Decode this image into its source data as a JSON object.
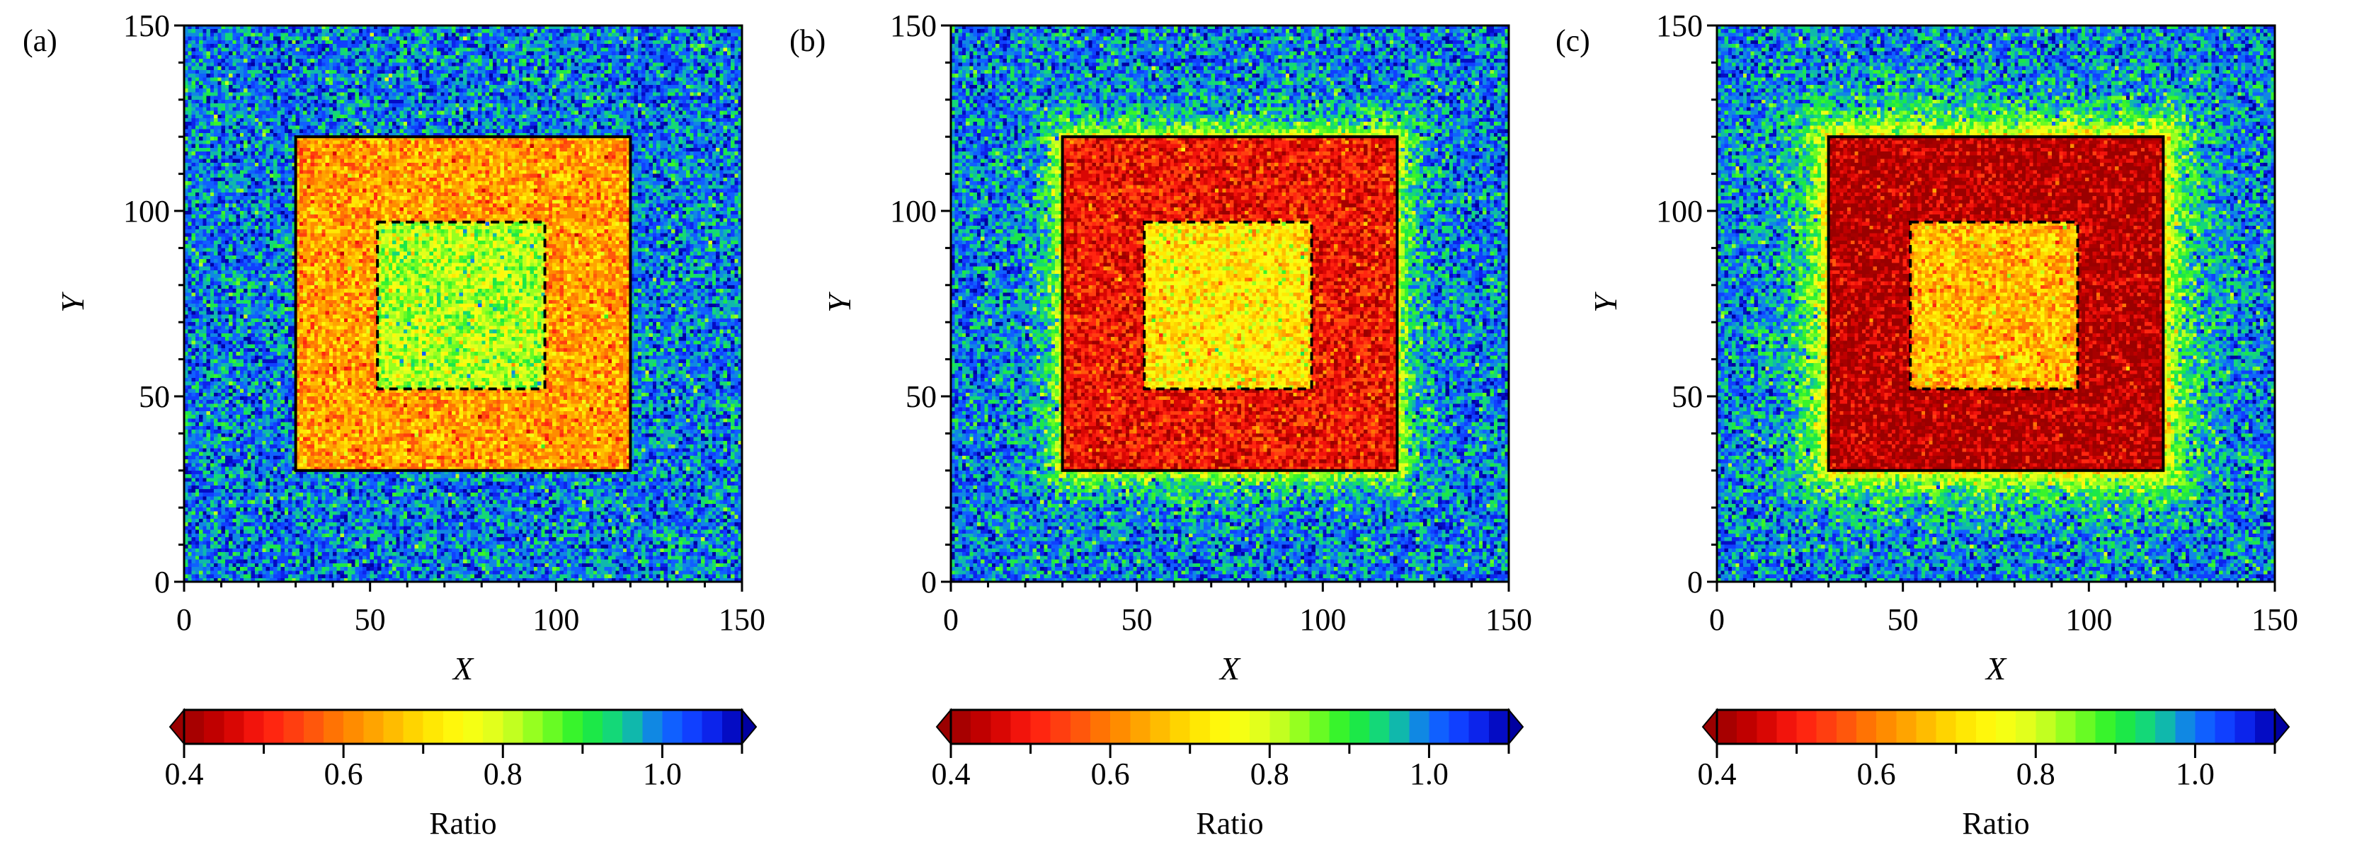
{
  "chart_data": {
    "type": "heatmap",
    "grid": {
      "nx": 150,
      "ny": 150
    },
    "colorbar": {
      "label": "Ratio",
      "range": [
        0.4,
        1.1
      ],
      "ticks": [
        0.4,
        0.5,
        0.6,
        0.7,
        0.8,
        0.9,
        1.0,
        1.1
      ],
      "tick_labels": [
        "0.4",
        "",
        "0.6",
        "",
        "0.8",
        "",
        "1.0",
        ""
      ],
      "extend": "both",
      "levels": 28,
      "colormap": [
        [
          0.4,
          "#9a0000"
        ],
        [
          0.45,
          "#cc0000"
        ],
        [
          0.5,
          "#ff1a10"
        ],
        [
          0.55,
          "#ff4a10"
        ],
        [
          0.6,
          "#ff8000"
        ],
        [
          0.65,
          "#ffb000"
        ],
        [
          0.7,
          "#ffe000"
        ],
        [
          0.75,
          "#ffff10"
        ],
        [
          0.8,
          "#d8ff20"
        ],
        [
          0.85,
          "#80ff20"
        ],
        [
          0.9,
          "#20f030"
        ],
        [
          0.95,
          "#10d090"
        ],
        [
          1.0,
          "#1070ff"
        ],
        [
          1.05,
          "#1030ff"
        ],
        [
          1.1,
          "#0000b0"
        ]
      ],
      "under_color": "#9a0000",
      "over_color": "#0000a0"
    },
    "panels": [
      {
        "label": "(a)",
        "xlabel": "X",
        "ylabel": "Y",
        "xlim": [
          0,
          150
        ],
        "ylim": [
          0,
          150
        ],
        "xticks": [
          "0",
          "50",
          "100",
          "150"
        ],
        "yticks": [
          "0",
          "50",
          "100",
          "150"
        ],
        "outer_square": [
          30,
          120
        ],
        "inner_dashed_square": [
          52,
          97
        ],
        "mean_background": 1.0,
        "mean_frame": 0.63,
        "mean_inner": 0.82,
        "halo_amplitude": 0.0,
        "halo_width": 3,
        "noise": 0.06
      },
      {
        "label": "(b)",
        "xlabel": "X",
        "ylabel": "Y",
        "xlim": [
          0,
          150
        ],
        "ylim": [
          0,
          150
        ],
        "xticks": [
          "0",
          "50",
          "100",
          "150"
        ],
        "yticks": [
          "0",
          "50",
          "100",
          "150"
        ],
        "outer_square": [
          30,
          120
        ],
        "inner_dashed_square": [
          52,
          97
        ],
        "mean_background": 1.0,
        "mean_frame": 0.49,
        "mean_inner": 0.72,
        "halo_amplitude": 0.22,
        "halo_width": 4,
        "noise": 0.06
      },
      {
        "label": "(c)",
        "xlabel": "X",
        "ylabel": "Y",
        "xlim": [
          0,
          150
        ],
        "ylim": [
          0,
          150
        ],
        "xticks": [
          "0",
          "50",
          "100",
          "150"
        ],
        "yticks": [
          "0",
          "50",
          "100",
          "150"
        ],
        "outer_square": [
          30,
          120
        ],
        "inner_dashed_square": [
          52,
          97
        ],
        "mean_background": 1.0,
        "mean_frame": 0.42,
        "mean_inner": 0.66,
        "halo_amplitude": 0.27,
        "halo_width": 6,
        "noise": 0.06
      }
    ]
  }
}
